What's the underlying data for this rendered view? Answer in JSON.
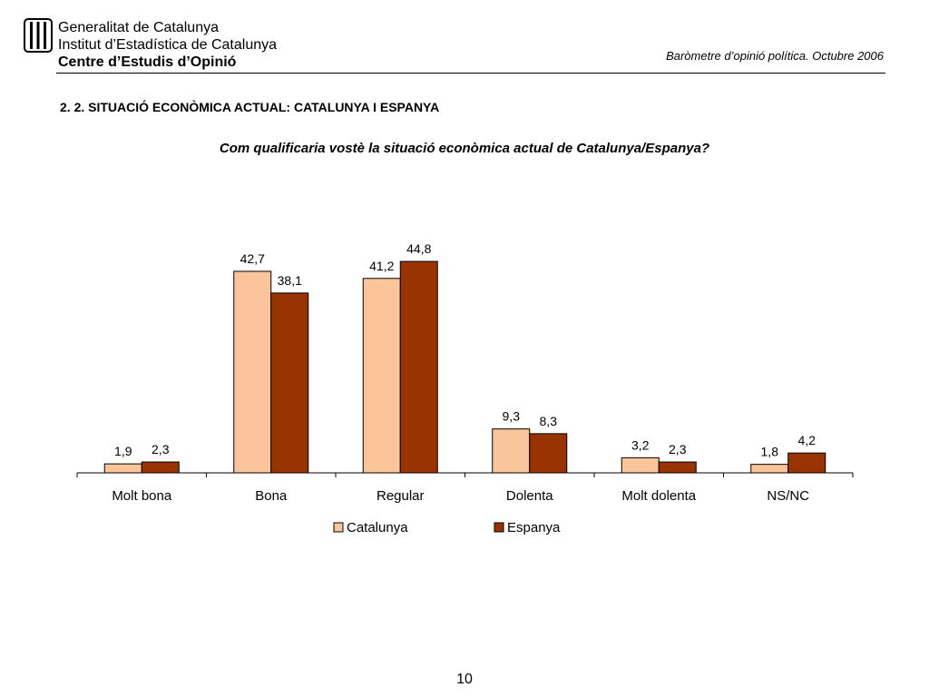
{
  "header": {
    "logo_lines": [
      "Generalitat de Catalunya",
      "Institut d’Estadística de Catalunya",
      "Centre d’Estudis d’Opinió"
    ],
    "subtitle": "Baròmetre d’opinió política. Octubre 2006",
    "logo_icon": "catalan-flag-emblem"
  },
  "section_title": "2. 2. SITUACIÓ ECONÒMICA ACTUAL: CATALUNYA I ESPANYA",
  "question": "Com qualificaria vostè la situació econòmica actual de Catalunya/Espanya?",
  "page_number": "10",
  "colors": {
    "catalunya": "#FAC59A",
    "espanya": "#993300"
  },
  "chart_data": {
    "type": "bar",
    "title": "",
    "xlabel": "",
    "ylabel": "",
    "categories": [
      "Molt bona",
      "Bona",
      "Regular",
      "Dolenta",
      "Molt dolenta",
      "NS/NC"
    ],
    "series": [
      {
        "name": "Catalunya",
        "values": [
          1.9,
          42.7,
          41.2,
          9.3,
          3.2,
          1.8
        ],
        "labels": [
          "1,9",
          "42,7",
          "41,2",
          "9,3",
          "3,2",
          "1,8"
        ]
      },
      {
        "name": "Espanya",
        "values": [
          2.3,
          38.1,
          44.8,
          8.3,
          2.3,
          4.2
        ],
        "labels": [
          "2,3",
          "38,1",
          "44,8",
          "8,3",
          "2,3",
          "4,2"
        ]
      }
    ],
    "ylim": [
      0,
      46
    ],
    "grid": false,
    "legend": "bottom"
  }
}
